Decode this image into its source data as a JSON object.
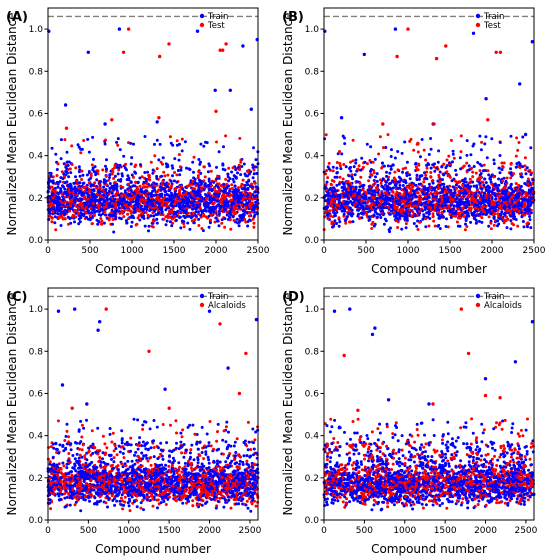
{
  "figure": {
    "xlabel": "Compound number",
    "ylabel": "Normalized Mean Euclidean Distance"
  },
  "chart_data": [
    {
      "type": "scatter",
      "panel": "(A)",
      "xlabel": "Compound number",
      "ylabel": "Normalized Mean Euclidean Distance",
      "xlim": [
        0,
        2500
      ],
      "ylim": [
        0,
        1.1
      ],
      "xticks": [
        0,
        500,
        1000,
        1500,
        2000,
        2500
      ],
      "yticks": [
        0.0,
        0.2,
        0.4,
        0.6,
        0.8,
        1.0
      ],
      "threshold": 1.06,
      "legend": "top-right",
      "series": [
        {
          "name": "Train",
          "color": "#0000ff",
          "points": [
            [
              10,
              0.99
            ],
            [
              480,
              0.89
            ],
            [
              850,
              1.0
            ],
            [
              1780,
              0.99
            ],
            [
              1990,
              0.71
            ],
            [
              2170,
              0.71
            ],
            [
              2320,
              0.92
            ],
            [
              2490,
              0.95
            ],
            [
              210,
              0.64
            ],
            [
              2420,
              0.62
            ],
            [
              1300,
              0.56
            ],
            [
              680,
              0.55
            ]
          ]
        },
        {
          "name": "Test",
          "color": "#ff0000",
          "points": [
            [
              900,
              0.89
            ],
            [
              960,
              1.0
            ],
            [
              1330,
              0.87
            ],
            [
              1440,
              0.93
            ],
            [
              2050,
              0.9
            ],
            [
              2080,
              0.9
            ],
            [
              2120,
              0.93
            ],
            [
              2000,
              0.61
            ],
            [
              1320,
              0.58
            ],
            [
              220,
              0.53
            ],
            [
              760,
              0.57
            ]
          ]
        }
      ],
      "cloud": {
        "n_points": 2500,
        "bulk_range": [
          0.03,
          0.27
        ],
        "max_scattered": 0.5
      }
    },
    {
      "type": "scatter",
      "panel": "(B)",
      "xlabel": "Compound number",
      "ylabel": "Normalized Mean Euclidean Distance",
      "xlim": [
        0,
        2500
      ],
      "ylim": [
        0,
        1.1
      ],
      "xticks": [
        0,
        500,
        1000,
        1500,
        2000,
        2500
      ],
      "yticks": [
        0.0,
        0.2,
        0.4,
        0.6,
        0.8,
        1.0
      ],
      "threshold": 1.06,
      "legend": "top-right",
      "series": [
        {
          "name": "Train",
          "color": "#0000ff",
          "points": [
            [
              10,
              0.99
            ],
            [
              480,
              0.88
            ],
            [
              850,
              1.0
            ],
            [
              1780,
              0.98
            ],
            [
              1930,
              0.67
            ],
            [
              2330,
              0.74
            ],
            [
              2480,
              0.94
            ],
            [
              210,
              0.58
            ],
            [
              1300,
              0.55
            ],
            [
              2400,
              0.5
            ]
          ]
        },
        {
          "name": "Test",
          "color": "#ff0000",
          "points": [
            [
              870,
              0.87
            ],
            [
              1000,
              1.0
            ],
            [
              1340,
              0.86
            ],
            [
              1450,
              0.92
            ],
            [
              2050,
              0.89
            ],
            [
              2100,
              0.89
            ],
            [
              1950,
              0.57
            ],
            [
              700,
              0.55
            ],
            [
              1310,
              0.55
            ]
          ]
        }
      ],
      "cloud": {
        "n_points": 2500,
        "bulk_range": [
          0.03,
          0.27
        ],
        "max_scattered": 0.5
      }
    },
    {
      "type": "scatter",
      "panel": "(C)",
      "xlabel": "Compound number",
      "ylabel": "Normalized Mean Euclidean Distance",
      "xlim": [
        0,
        2600
      ],
      "ylim": [
        0,
        1.1
      ],
      "xticks": [
        0,
        500,
        1000,
        1500,
        2000,
        2500
      ],
      "yticks": [
        0.0,
        0.2,
        0.4,
        0.6,
        0.8,
        1.0
      ],
      "threshold": 1.06,
      "legend": "top-right",
      "series": [
        {
          "name": "Train",
          "color": "#0000ff",
          "points": [
            [
              130,
              0.99
            ],
            [
              330,
              1.0
            ],
            [
              620,
              0.9
            ],
            [
              640,
              0.94
            ],
            [
              2000,
              0.99
            ],
            [
              2230,
              0.72
            ],
            [
              2580,
              0.95
            ],
            [
              180,
              0.64
            ],
            [
              1450,
              0.62
            ],
            [
              480,
              0.55
            ]
          ]
        },
        {
          "name": "Alcaloids",
          "color": "#ff0000",
          "points": [
            [
              720,
              1.0
            ],
            [
              1250,
              0.8
            ],
            [
              2130,
              0.93
            ],
            [
              2450,
              0.79
            ],
            [
              2370,
              0.6
            ],
            [
              1500,
              0.53
            ],
            [
              300,
              0.53
            ]
          ]
        }
      ],
      "cloud": {
        "n_points": 2600,
        "bulk_range": [
          0.03,
          0.25
        ],
        "max_scattered": 0.48
      }
    },
    {
      "type": "scatter",
      "panel": "(D)",
      "xlabel": "Compound number",
      "ylabel": "Normalized Mean Euclidean Distance",
      "xlim": [
        0,
        2600
      ],
      "ylim": [
        0,
        1.1
      ],
      "xticks": [
        0,
        500,
        1000,
        1500,
        2000,
        2500
      ],
      "yticks": [
        0.0,
        0.2,
        0.4,
        0.6,
        0.8,
        1.0
      ],
      "threshold": 1.06,
      "legend": "top-right",
      "series": [
        {
          "name": "Train",
          "color": "#0000ff",
          "points": [
            [
              130,
              0.99
            ],
            [
              320,
              1.0
            ],
            [
              600,
              0.88
            ],
            [
              630,
              0.91
            ],
            [
              2000,
              0.67
            ],
            [
              2370,
              0.75
            ],
            [
              2580,
              0.94
            ],
            [
              1300,
              0.55
            ],
            [
              800,
              0.57
            ]
          ]
        },
        {
          "name": "Alcaloids",
          "color": "#ff0000",
          "points": [
            [
              250,
              0.78
            ],
            [
              1700,
              1.0
            ],
            [
              1790,
              0.79
            ],
            [
              2000,
              0.59
            ],
            [
              2180,
              0.58
            ],
            [
              1350,
              0.55
            ],
            [
              420,
              0.52
            ]
          ]
        }
      ],
      "cloud": {
        "n_points": 2600,
        "bulk_range": [
          0.03,
          0.25
        ],
        "max_scattered": 0.48
      }
    }
  ]
}
